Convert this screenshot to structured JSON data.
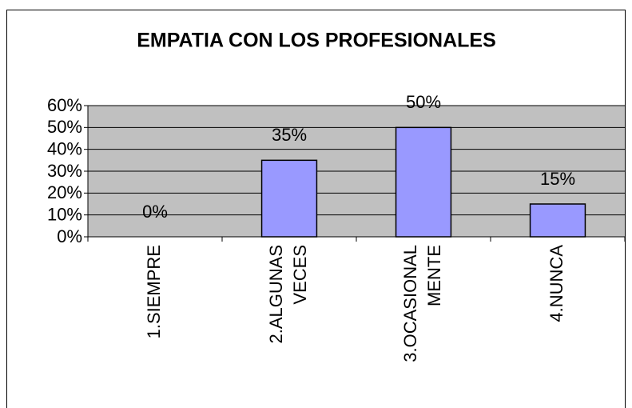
{
  "chart_data": {
    "type": "bar",
    "title": "EMPATIA CON LOS PROFESIONALES",
    "categories": [
      [
        "1.SIEMPRE"
      ],
      [
        "2.ALGUNAS",
        "VECES"
      ],
      [
        "3.OCASIONAL",
        "MENTE"
      ],
      [
        "4.NUNCA"
      ]
    ],
    "values": [
      0,
      35,
      50,
      15
    ],
    "value_labels": [
      "0%",
      "35%",
      "50%",
      "15%"
    ],
    "color": "#9999ff",
    "ylim": [
      0,
      60
    ],
    "yticks": [
      {
        "value": 0,
        "label": "0%"
      },
      {
        "value": 10,
        "label": "10%"
      },
      {
        "value": 20,
        "label": "20%"
      },
      {
        "value": 30,
        "label": "30%"
      },
      {
        "value": 40,
        "label": "40%"
      },
      {
        "value": 50,
        "label": "50%"
      },
      {
        "value": 60,
        "label": "60%"
      }
    ],
    "grid": true
  }
}
